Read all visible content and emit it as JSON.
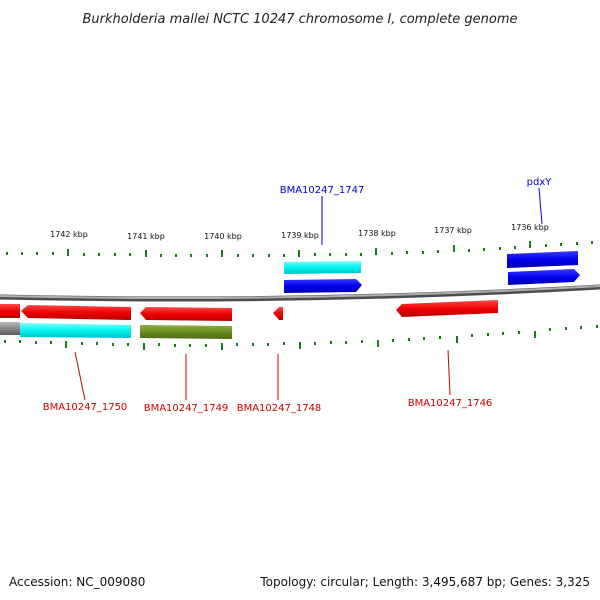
{
  "title": "Burkholderia mallei NCTC 10247 chromosome I, complete genome",
  "footer": {
    "accession": "Accession: NC_009080",
    "summary": "Topology: circular; Length: 3,495,687 bp; Genes: 3,325"
  },
  "colors": {
    "forward_cds": "#0000ff",
    "reverse_cds": "#ff0000",
    "cog_cyan": "#00ffff",
    "cog_olive": "#6b8e23",
    "tick": "#1a7a1a",
    "backbone": "#808080",
    "label_forward": "#0000cc",
    "label_reverse": "#cc0000"
  },
  "scale_labels": [
    "1742 kbp",
    "1741 kbp",
    "1740 kbp",
    "1739 kbp",
    "1738 kbp",
    "1737 kbp",
    "1736 kbp"
  ],
  "gene_labels": {
    "forward": [
      "BMA10247_1747",
      "pdxY"
    ],
    "reverse": [
      "BMA10247_1750",
      "BMA10247_1749",
      "BMA10247_1748",
      "BMA10247_1746"
    ]
  }
}
